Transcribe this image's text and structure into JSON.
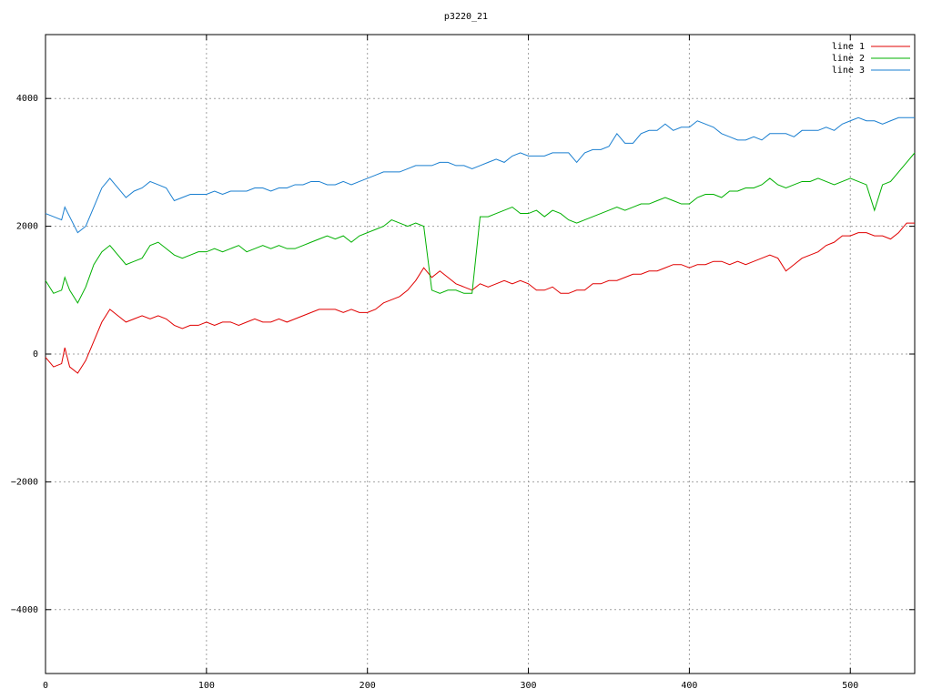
{
  "chart_data": {
    "type": "line",
    "title": "p3220_21",
    "x": [
      0,
      5,
      10,
      12,
      15,
      20,
      25,
      30,
      35,
      40,
      45,
      50,
      55,
      60,
      65,
      70,
      75,
      80,
      85,
      90,
      95,
      100,
      105,
      110,
      115,
      120,
      125,
      130,
      135,
      140,
      145,
      150,
      155,
      160,
      165,
      170,
      175,
      180,
      185,
      190,
      195,
      200,
      205,
      210,
      215,
      220,
      225,
      230,
      235,
      240,
      245,
      250,
      255,
      260,
      265,
      270,
      275,
      280,
      285,
      290,
      295,
      300,
      305,
      310,
      315,
      320,
      325,
      330,
      335,
      340,
      345,
      350,
      355,
      360,
      365,
      370,
      375,
      380,
      385,
      390,
      395,
      400,
      405,
      410,
      415,
      420,
      425,
      430,
      435,
      440,
      445,
      450,
      455,
      460,
      465,
      470,
      475,
      480,
      485,
      490,
      495,
      500,
      505,
      510,
      515,
      520,
      525,
      530,
      535,
      540
    ],
    "series": [
      {
        "name": "line 1",
        "color": "#e00000",
        "values": [
          -50,
          -200,
          -150,
          100,
          -200,
          -300,
          -100,
          200,
          500,
          700,
          600,
          500,
          550,
          600,
          550,
          600,
          550,
          450,
          400,
          450,
          450,
          500,
          450,
          500,
          500,
          450,
          500,
          550,
          500,
          500,
          550,
          500,
          550,
          600,
          650,
          700,
          700,
          700,
          650,
          700,
          650,
          650,
          700,
          800,
          850,
          900,
          1000,
          1150,
          1350,
          1200,
          1300,
          1200,
          1100,
          1050,
          1000,
          1100,
          1050,
          1100,
          1150,
          1100,
          1150,
          1100,
          1000,
          1000,
          1050,
          950,
          950,
          1000,
          1000,
          1100,
          1100,
          1150,
          1150,
          1200,
          1250,
          1250,
          1300,
          1300,
          1350,
          1400,
          1400,
          1350,
          1400,
          1400,
          1450,
          1450,
          1400,
          1450,
          1400,
          1450,
          1500,
          1550,
          1500,
          1300,
          1400,
          1500,
          1550,
          1600,
          1700,
          1750,
          1850,
          1850,
          1900,
          1900,
          1850,
          1850,
          1800,
          1900,
          2050,
          2050
        ]
      },
      {
        "name": "line 2",
        "color": "#00b000",
        "values": [
          1150,
          950,
          1000,
          1200,
          1000,
          800,
          1050,
          1400,
          1600,
          1700,
          1550,
          1400,
          1450,
          1500,
          1700,
          1750,
          1650,
          1550,
          1500,
          1550,
          1600,
          1600,
          1650,
          1600,
          1650,
          1700,
          1600,
          1650,
          1700,
          1650,
          1700,
          1650,
          1650,
          1700,
          1750,
          1800,
          1850,
          1800,
          1850,
          1750,
          1850,
          1900,
          1950,
          2000,
          2100,
          2050,
          2000,
          2050,
          2000,
          1000,
          950,
          1000,
          1000,
          950,
          950,
          2150,
          2150,
          2200,
          2250,
          2300,
          2200,
          2200,
          2250,
          2150,
          2250,
          2200,
          2100,
          2050,
          2100,
          2150,
          2200,
          2250,
          2300,
          2250,
          2300,
          2350,
          2350,
          2400,
          2450,
          2400,
          2350,
          2350,
          2450,
          2500,
          2500,
          2450,
          2550,
          2550,
          2600,
          2600,
          2650,
          2750,
          2650,
          2600,
          2650,
          2700,
          2700,
          2750,
          2700,
          2650,
          2700,
          2750,
          2700,
          2650,
          2250,
          2650,
          2700,
          2850,
          3000,
          3150
        ]
      },
      {
        "name": "line 3",
        "color": "#1a7fd0",
        "values": [
          2200,
          2150,
          2100,
          2300,
          2150,
          1900,
          2000,
          2300,
          2600,
          2750,
          2600,
          2450,
          2550,
          2600,
          2700,
          2650,
          2600,
          2400,
          2450,
          2500,
          2500,
          2500,
          2550,
          2500,
          2550,
          2550,
          2550,
          2600,
          2600,
          2550,
          2600,
          2600,
          2650,
          2650,
          2700,
          2700,
          2650,
          2650,
          2700,
          2650,
          2700,
          2750,
          2800,
          2850,
          2850,
          2850,
          2900,
          2950,
          2950,
          2950,
          3000,
          3000,
          2950,
          2950,
          2900,
          2950,
          3000,
          3050,
          3000,
          3100,
          3150,
          3100,
          3100,
          3100,
          3150,
          3150,
          3150,
          3000,
          3150,
          3200,
          3200,
          3250,
          3450,
          3300,
          3300,
          3450,
          3500,
          3500,
          3600,
          3500,
          3550,
          3550,
          3650,
          3600,
          3550,
          3450,
          3400,
          3350,
          3350,
          3400,
          3350,
          3450,
          3450,
          3450,
          3400,
          3500,
          3500,
          3500,
          3550,
          3500,
          3600,
          3650,
          3700,
          3650,
          3650,
          3600,
          3650,
          3700,
          3700,
          3700
        ]
      }
    ],
    "xlim": [
      0,
      540
    ],
    "xticks": [
      0,
      100,
      200,
      300,
      400,
      500
    ],
    "ylim": [
      -5000,
      5000
    ],
    "yticks": [
      {
        "value": -4000,
        "label": "−4000"
      },
      {
        "value": -2000,
        "label": "−2000"
      },
      0,
      2000,
      4000
    ],
    "grid": true,
    "legend": "upper right"
  }
}
